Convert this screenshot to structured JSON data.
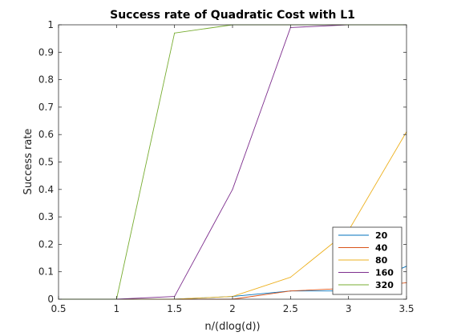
{
  "chart_data": {
    "type": "line",
    "title": "Success rate of Quadratic Cost with L1",
    "xlabel": "n/(dlog(d))",
    "ylabel": "Success rate",
    "xlim": [
      0.5,
      3.5
    ],
    "ylim": [
      0,
      1
    ],
    "xticks": [
      0.5,
      1,
      1.5,
      2,
      2.5,
      3,
      3.5
    ],
    "xtick_labels": [
      "0.5",
      "1",
      "1.5",
      "2",
      "2.5",
      "3",
      "3.5"
    ],
    "yticks": [
      0,
      0.1,
      0.2,
      0.3,
      0.4,
      0.5,
      0.6,
      0.7,
      0.8,
      0.9,
      1
    ],
    "ytick_labels": [
      "0",
      "0.1",
      "0.2",
      "0.3",
      "0.4",
      "0.5",
      "0.6",
      "0.7",
      "0.8",
      "0.9",
      "1"
    ],
    "grid": false,
    "legend_position": "bottom-right",
    "x": [
      0.5,
      1,
      1.5,
      2,
      2.5,
      3,
      3.5
    ],
    "series": [
      {
        "name": "20",
        "color": "#0072BD",
        "values": [
          0,
          0,
          0,
          0.01,
          0.03,
          0.03,
          0.12
        ]
      },
      {
        "name": "40",
        "color": "#D95319",
        "values": [
          0,
          0,
          0,
          0,
          0.03,
          0.04,
          0.06
        ]
      },
      {
        "name": "80",
        "color": "#EDB120",
        "values": [
          0,
          0,
          0,
          0.01,
          0.08,
          0.25,
          0.61
        ]
      },
      {
        "name": "160",
        "color": "#7E2F8E",
        "values": [
          0,
          0,
          0.01,
          0.4,
          0.99,
          1,
          1
        ]
      },
      {
        "name": "320",
        "color": "#77AC30",
        "values": [
          0,
          0,
          0.97,
          1,
          1,
          1,
          1
        ]
      }
    ]
  }
}
